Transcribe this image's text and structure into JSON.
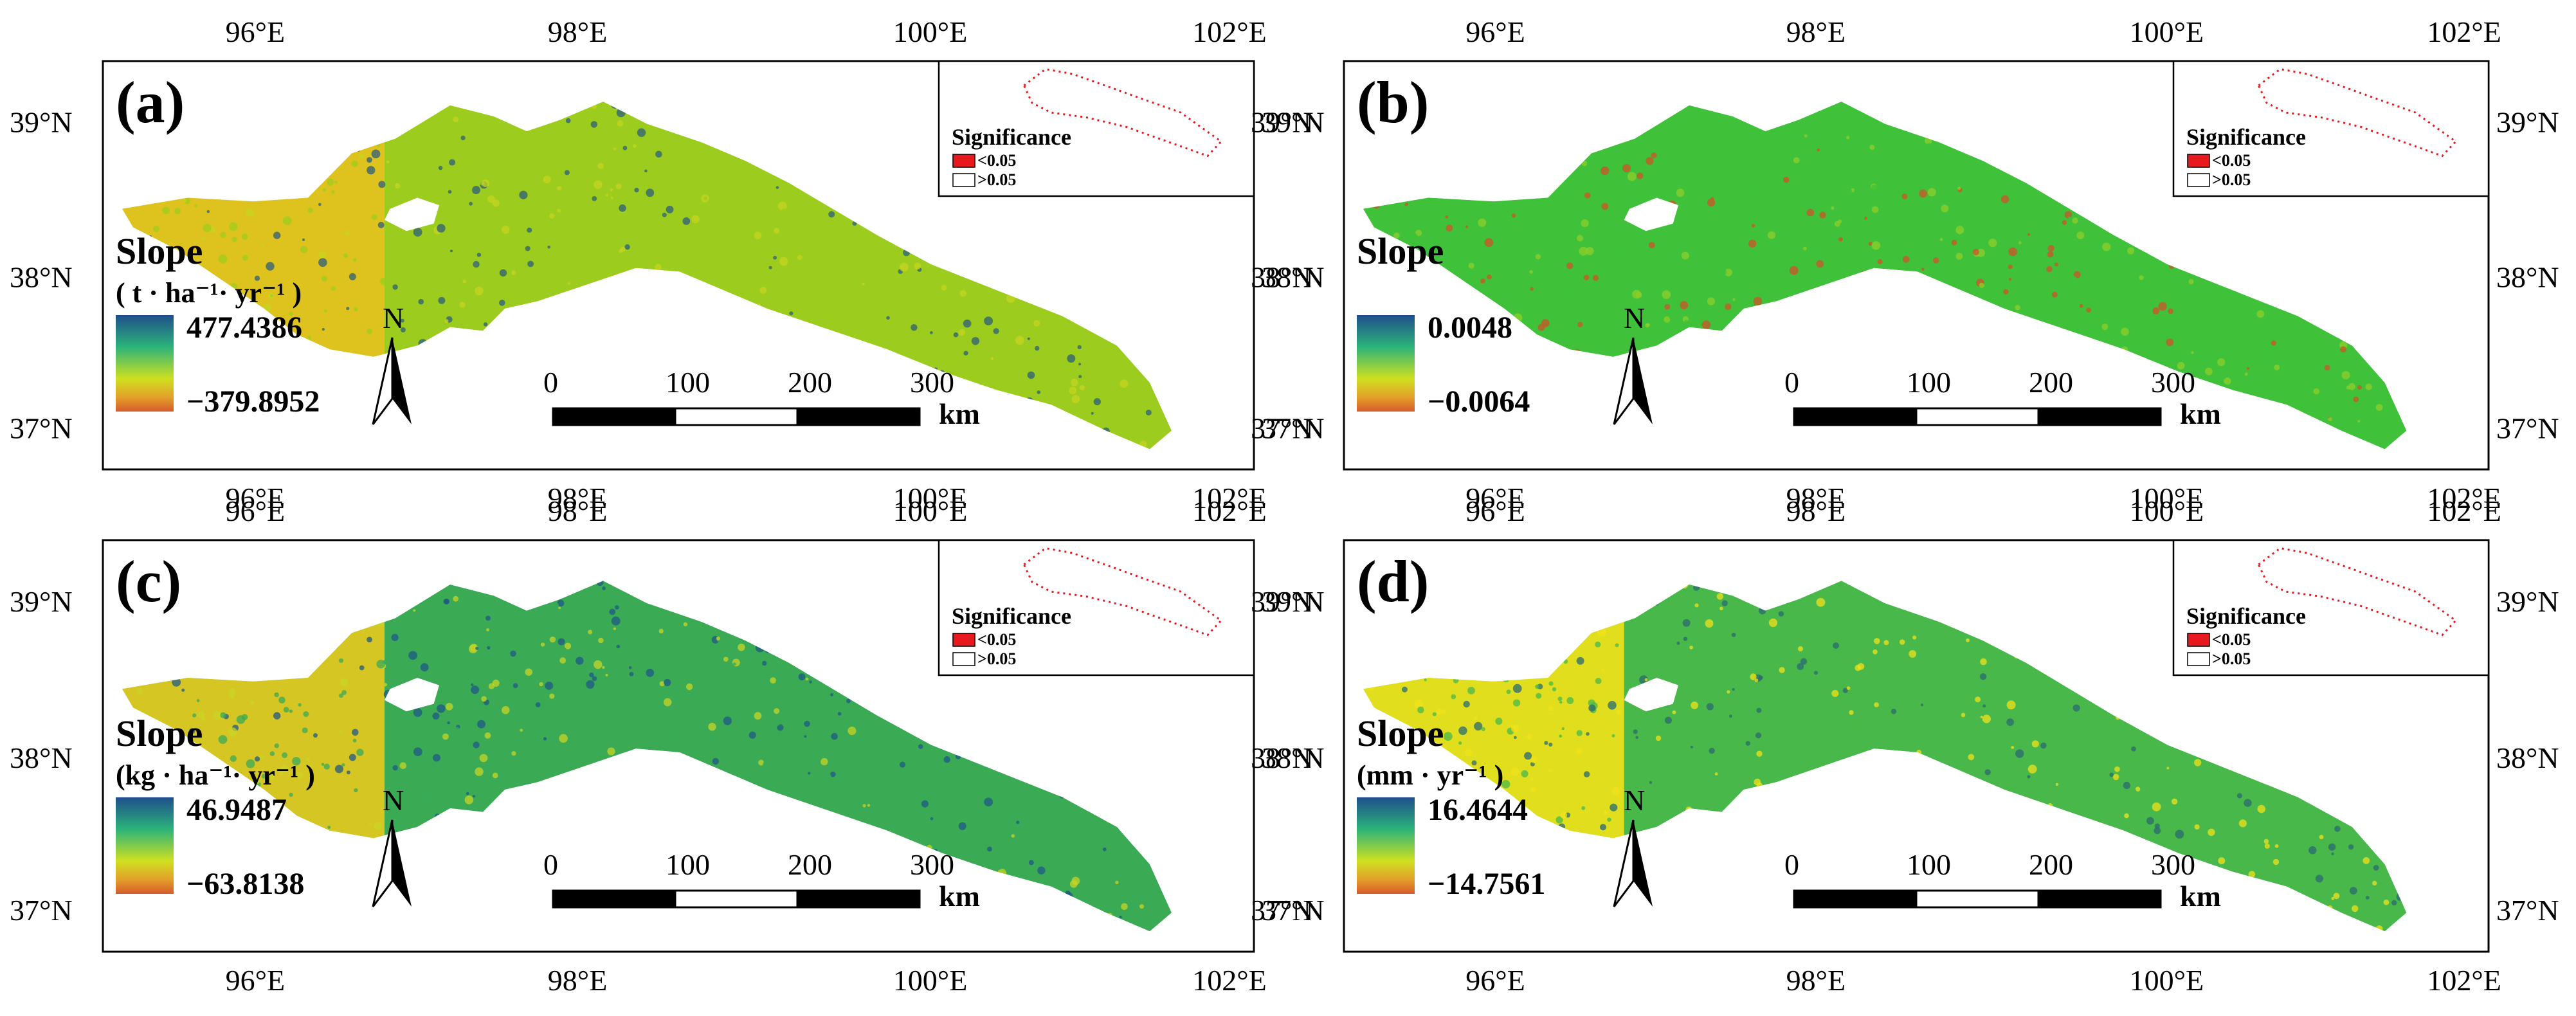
{
  "figure": {
    "panels": [
      {
        "label": "(a)",
        "legend_title": "Slope",
        "legend_unit": "( t · ha⁻¹· yr⁻¹ )",
        "legend_max": "477.4386",
        "legend_min": "−379.8952",
        "lon_ticks": [
          "96°E",
          "98°E",
          "100°E",
          "102°E"
        ],
        "lat_ticks": [
          "39°N",
          "38°N",
          "37°N"
        ],
        "inset": {
          "title": "Significance",
          "items": [
            "<0.05",
            ">0.05"
          ]
        },
        "scalebar": {
          "ticks": [
            "0",
            "100",
            "200",
            "300"
          ],
          "unit": "km"
        },
        "north": "N",
        "colors": {
          "dominant": "#9ccc1e",
          "accent": "#c5d51f",
          "texture": "#2c5e7a",
          "west": "#e6c11d"
        }
      },
      {
        "label": "(b)",
        "legend_title": "Slope",
        "legend_unit": "",
        "legend_max": "0.0048",
        "legend_min": "−0.0064",
        "lon_ticks": [
          "96°E",
          "98°E",
          "100°E",
          "102°E"
        ],
        "lat_ticks": [
          "39°N",
          "38°N",
          "37°N"
        ],
        "inset": {
          "title": "Significance",
          "items": [
            "<0.05",
            ">0.05"
          ]
        },
        "scalebar": {
          "ticks": [
            "0",
            "100",
            "200",
            "300"
          ],
          "unit": "km"
        },
        "north": "N",
        "colors": {
          "dominant": "#3fc23a",
          "accent": "#8fce2a",
          "texture": "#d0532a",
          "west": "#3fc23a"
        }
      },
      {
        "label": "(c)",
        "legend_title": "Slope",
        "legend_unit": "(kg · ha⁻¹· yr⁻¹ )",
        "legend_max": "46.9487",
        "legend_min": "−63.8138",
        "lon_ticks": [
          "96°E",
          "98°E",
          "100°E",
          "102°E"
        ],
        "lat_ticks": [
          "39°N",
          "38°N",
          "37°N"
        ],
        "inset": {
          "title": "Significance",
          "items": [
            "<0.05",
            ">0.05"
          ]
        },
        "scalebar": {
          "ticks": [
            "0",
            "100",
            "200",
            "300"
          ],
          "unit": "km"
        },
        "north": "N",
        "colors": {
          "dominant": "#3aaa55",
          "accent": "#c8d426",
          "texture": "#1f5a85",
          "west": "#e8c91e"
        }
      },
      {
        "label": "(d)",
        "legend_title": "Slope",
        "legend_unit": "(mm · yr⁻¹ )",
        "legend_max": "16.4644",
        "legend_min": "−14.7561",
        "lon_ticks": [
          "96°E",
          "98°E",
          "100°E",
          "102°E"
        ],
        "lat_ticks": [
          "39°N",
          "38°N",
          "37°N"
        ],
        "inset": {
          "title": "Significance",
          "items": [
            "<0.05",
            ">0.05"
          ]
        },
        "scalebar": {
          "ticks": [
            "0",
            "100",
            "200",
            "300"
          ],
          "unit": "km"
        },
        "north": "N",
        "colors": {
          "dominant": "#48b84a",
          "accent": "#f0e21a",
          "texture": "#2a6a70",
          "west": "#f2e21a"
        }
      }
    ],
    "colors": {
      "ramp_top": "#1f4e8c",
      "ramp_mid1": "#2bb37a",
      "ramp_mid2": "#cfe01f",
      "ramp_low": "#e3a02a",
      "ramp_bottom": "#d65b2a",
      "sig_red": "#e8191e"
    }
  }
}
